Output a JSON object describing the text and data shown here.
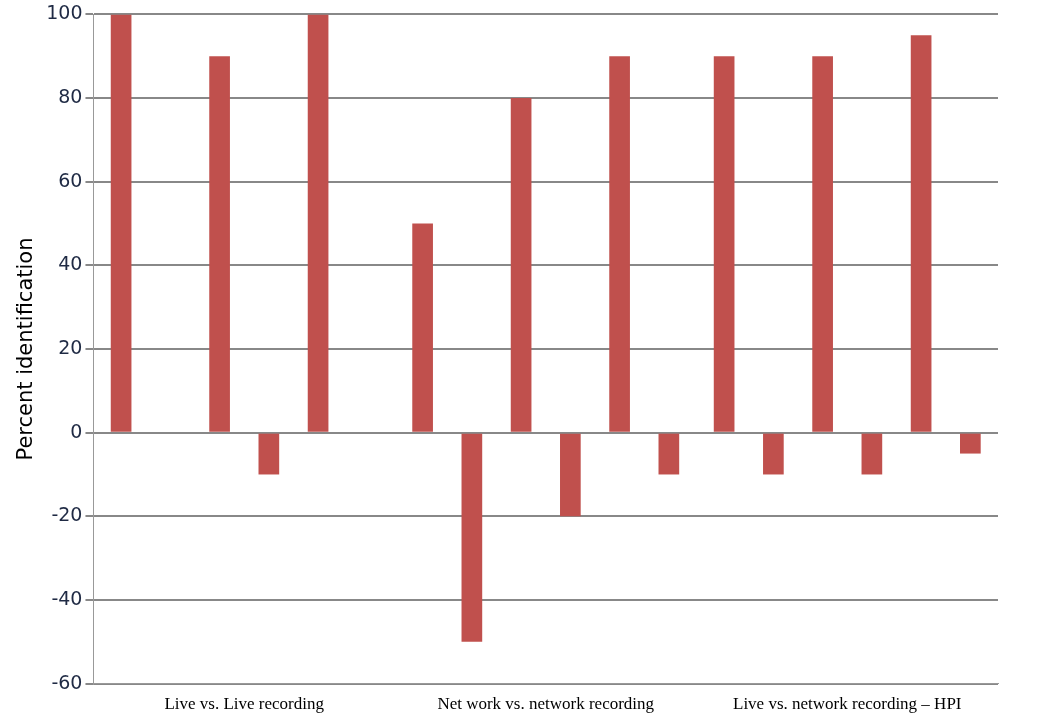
{
  "chart_data": {
    "type": "bar",
    "ylabel": "Percent identification",
    "categories": [
      "Live vs. Live recording",
      "Net work vs. network recording",
      "Live vs. network recording – HPI"
    ],
    "series": [
      {
        "color": "#c0504d",
        "values": [
          100,
          50,
          90
        ]
      },
      {
        "color": "#c0504d",
        "values": [
          0,
          -50,
          -10
        ]
      },
      {
        "color": "#c0504d",
        "values": [
          90,
          80,
          90
        ]
      },
      {
        "color": "#c0504d",
        "values": [
          -10,
          -20,
          -10
        ]
      },
      {
        "color": "#c0504d",
        "values": [
          100,
          90,
          95
        ]
      },
      {
        "color": "#c0504d",
        "values": [
          0,
          -10,
          -5
        ]
      }
    ],
    "ylim": [
      -60,
      100
    ],
    "yticks": [
      -60,
      -40,
      -20,
      0,
      20,
      40,
      60,
      80,
      100
    ],
    "grid": "y",
    "legend": false
  }
}
